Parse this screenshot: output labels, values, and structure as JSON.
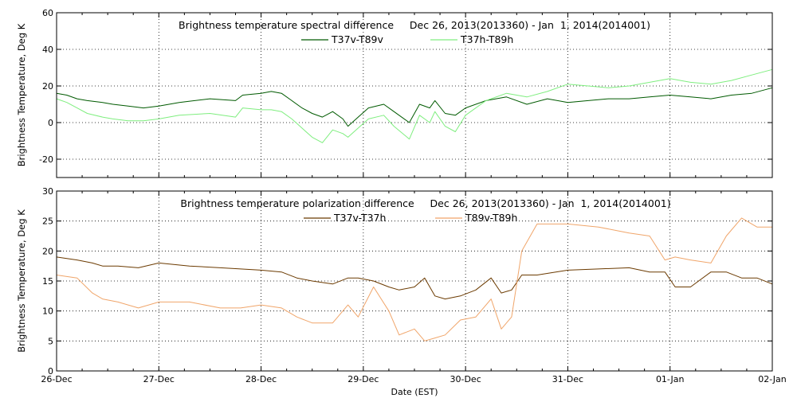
{
  "colors": {
    "T37v-T89v": "#005a00",
    "T37h-T89h": "#7fee7f",
    "T37v-T37h": "#6b3a00",
    "T89v-T89h": "#f0a56a"
  },
  "chart_data": [
    {
      "type": "line",
      "title": "Brightness temperature spectral difference     Dec 26, 2013(2013360) - Jan  1, 2014(2014001)",
      "ylabel": "Brightness Temperature, Deg K",
      "xlabel": "",
      "ylim": [
        -30,
        60
      ],
      "yticks": [
        -20,
        0,
        20,
        40,
        60
      ],
      "xlim": [
        0,
        7
      ],
      "xticks": [
        0,
        1,
        2,
        3,
        4,
        5,
        6,
        7
      ],
      "xticklabels": [],
      "grid": true,
      "legend_position": "top-center",
      "x_unit": "days since 26-Dec 00:00",
      "series": [
        {
          "name": "T37v-T89v",
          "x": [
            0,
            0.1,
            0.2,
            0.3,
            0.45,
            0.55,
            0.7,
            0.85,
            1.0,
            1.2,
            1.5,
            1.75,
            1.82,
            2.0,
            2.1,
            2.2,
            2.3,
            2.4,
            2.5,
            2.6,
            2.7,
            2.8,
            2.85,
            2.95,
            3.05,
            3.2,
            3.3,
            3.45,
            3.55,
            3.65,
            3.7,
            3.8,
            3.9,
            4.0,
            4.2,
            4.4,
            4.6,
            4.8,
            5.0,
            5.2,
            5.4,
            5.6,
            5.8,
            6.0,
            6.2,
            6.4,
            6.6,
            6.8,
            7.0
          ],
          "values": [
            16,
            15,
            13,
            12,
            11,
            10,
            9,
            8,
            9,
            11,
            13,
            12,
            15,
            16,
            17,
            16,
            12,
            8,
            5,
            3,
            6,
            2,
            -2,
            3,
            8,
            10,
            6,
            0,
            10,
            8,
            12,
            5,
            4,
            8,
            12,
            14,
            10,
            13,
            11,
            12,
            13,
            13,
            14,
            15,
            14,
            13,
            15,
            16,
            19
          ]
        },
        {
          "name": "T37h-T89h",
          "x": [
            0,
            0.1,
            0.2,
            0.3,
            0.45,
            0.55,
            0.7,
            0.85,
            1.0,
            1.2,
            1.5,
            1.75,
            1.82,
            2.0,
            2.1,
            2.2,
            2.3,
            2.4,
            2.5,
            2.6,
            2.7,
            2.8,
            2.85,
            2.95,
            3.05,
            3.2,
            3.3,
            3.45,
            3.55,
            3.65,
            3.7,
            3.8,
            3.9,
            4.0,
            4.2,
            4.4,
            4.6,
            4.8,
            5.0,
            5.2,
            5.4,
            5.6,
            5.8,
            6.0,
            6.2,
            6.4,
            6.6,
            6.8,
            7.0
          ],
          "values": [
            13,
            11,
            8,
            5,
            3,
            2,
            1,
            1,
            2,
            4,
            5,
            3,
            8,
            7,
            7,
            6,
            2,
            -3,
            -8,
            -11,
            -4,
            -6,
            -8,
            -3,
            2,
            4,
            -2,
            -9,
            4,
            0,
            6,
            -2,
            -5,
            4,
            12,
            16,
            14,
            17,
            21,
            20,
            19,
            20,
            22,
            24,
            22,
            21,
            23,
            26,
            29
          ]
        }
      ]
    },
    {
      "type": "line",
      "title": "Brightness temperature polarization difference     Dec 26, 2013(2013360) - Jan  1, 2014(2014001)",
      "ylabel": "Brightness Temperature, Deg K",
      "xlabel": "Date (EST)",
      "ylim": [
        0,
        30
      ],
      "yticks": [
        0,
        5,
        10,
        15,
        20,
        25,
        30
      ],
      "xlim": [
        0,
        7
      ],
      "xticks": [
        0,
        1,
        2,
        3,
        4,
        5,
        6,
        7
      ],
      "xticklabels": [
        "26-Dec",
        "27-Dec",
        "28-Dec",
        "29-Dec",
        "30-Dec",
        "31-Dec",
        "01-Jan",
        "02-Jan"
      ],
      "grid": true,
      "legend_position": "top-center",
      "x_unit": "days since 26-Dec 00:00",
      "series": [
        {
          "name": "T37v-T37h",
          "x": [
            0,
            0.2,
            0.35,
            0.45,
            0.6,
            0.8,
            1.0,
            1.3,
            1.6,
            1.8,
            2.0,
            2.2,
            2.35,
            2.5,
            2.7,
            2.85,
            2.95,
            3.1,
            3.25,
            3.35,
            3.5,
            3.6,
            3.7,
            3.8,
            3.95,
            4.1,
            4.25,
            4.35,
            4.45,
            4.55,
            4.7,
            5.0,
            5.3,
            5.6,
            5.8,
            5.95,
            6.05,
            6.2,
            6.4,
            6.55,
            6.7,
            6.85,
            7.0
          ],
          "values": [
            19,
            18.5,
            18,
            17.5,
            17.5,
            17.2,
            18,
            17.5,
            17.2,
            17,
            16.8,
            16.5,
            15.5,
            15,
            14.5,
            15.5,
            15.5,
            15,
            14,
            13.5,
            14,
            15.5,
            12.5,
            12,
            12.5,
            13.5,
            15.5,
            13,
            13.5,
            16,
            16,
            16.8,
            17,
            17.2,
            16.5,
            16.5,
            14,
            14,
            16.5,
            16.5,
            15.5,
            15.5,
            14.5
          ]
        },
        {
          "name": "T89v-T89h",
          "x": [
            0,
            0.2,
            0.35,
            0.45,
            0.6,
            0.8,
            1.0,
            1.3,
            1.6,
            1.8,
            2.0,
            2.2,
            2.35,
            2.5,
            2.7,
            2.85,
            2.95,
            3.1,
            3.25,
            3.35,
            3.5,
            3.6,
            3.7,
            3.8,
            3.95,
            4.1,
            4.25,
            4.35,
            4.45,
            4.55,
            4.7,
            5.0,
            5.3,
            5.6,
            5.8,
            5.95,
            6.05,
            6.2,
            6.4,
            6.55,
            6.7,
            6.85,
            7.0
          ],
          "values": [
            16,
            15.5,
            13,
            12,
            11.5,
            10.5,
            11.5,
            11.5,
            10.5,
            10.5,
            11,
            10.5,
            9,
            8,
            8,
            11,
            9,
            14,
            10,
            6,
            7,
            5,
            5.5,
            6,
            8.5,
            9,
            12,
            7,
            9,
            20,
            24.5,
            24.5,
            24,
            23,
            22.5,
            18.5,
            19,
            18.5,
            18,
            22.5,
            25.5,
            24,
            24
          ]
        }
      ]
    }
  ]
}
